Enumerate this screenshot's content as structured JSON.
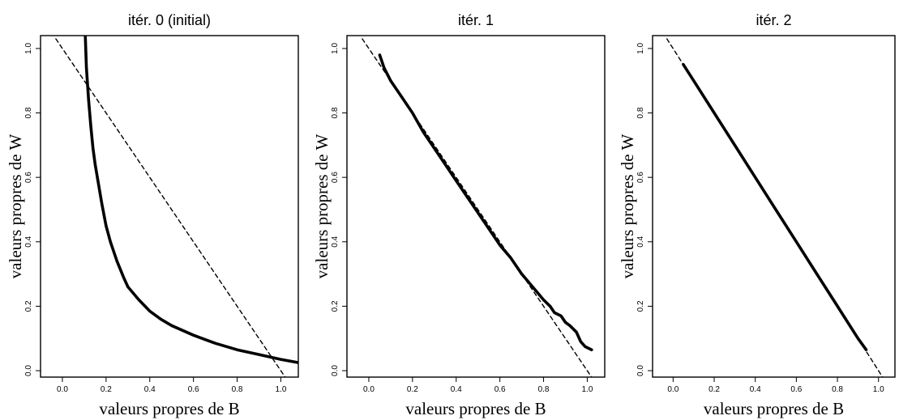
{
  "chart_data": [
    {
      "type": "line",
      "title": "itér. 0 (initial)",
      "xlabel": "valeurs propres de B",
      "ylabel": "valeurs propres de W",
      "xlim": [
        -0.1,
        1.08
      ],
      "ylim": [
        -0.02,
        1.04
      ],
      "xticks": [
        "0.0",
        "0.2",
        "0.4",
        "0.6",
        "0.8",
        "1.0"
      ],
      "yticks": [
        "0.0",
        "0.2",
        "0.4",
        "0.6",
        "0.8",
        "1.0"
      ],
      "grid": false,
      "series": [
        {
          "style": "solid",
          "x": [
            0.105,
            0.11,
            0.12,
            0.13,
            0.14,
            0.15,
            0.16,
            0.18,
            0.2,
            0.22,
            0.25,
            0.28,
            0.3,
            0.35,
            0.4,
            0.45,
            0.5,
            0.6,
            0.7,
            0.8,
            0.9,
            1.0,
            1.08
          ],
          "y": [
            1.04,
            0.94,
            0.84,
            0.76,
            0.69,
            0.64,
            0.6,
            0.52,
            0.45,
            0.4,
            0.34,
            0.29,
            0.26,
            0.22,
            0.185,
            0.16,
            0.14,
            0.11,
            0.085,
            0.065,
            0.05,
            0.035,
            0.025
          ]
        },
        {
          "style": "dashed",
          "x": [
            -0.03,
            1.03
          ],
          "y": [
            1.03,
            -0.03
          ]
        }
      ]
    },
    {
      "type": "line",
      "title": "itér. 1",
      "xlabel": "valeurs propres de B",
      "ylabel": "valeurs propres de W",
      "xlim": [
        -0.1,
        1.08
      ],
      "ylim": [
        -0.02,
        1.04
      ],
      "xticks": [
        "0.0",
        "0.2",
        "0.4",
        "0.6",
        "0.8",
        "1.0"
      ],
      "yticks": [
        "0.0",
        "0.2",
        "0.4",
        "0.6",
        "0.8",
        "1.0"
      ],
      "grid": false,
      "series": [
        {
          "style": "solid",
          "x": [
            0.05,
            0.07,
            0.1,
            0.15,
            0.2,
            0.25,
            0.3,
            0.35,
            0.4,
            0.45,
            0.5,
            0.55,
            0.6,
            0.65,
            0.7,
            0.75,
            0.8,
            0.83,
            0.85,
            0.88,
            0.9,
            0.92,
            0.95,
            0.97,
            0.99,
            1.02
          ],
          "y": [
            0.98,
            0.94,
            0.9,
            0.85,
            0.8,
            0.74,
            0.69,
            0.64,
            0.59,
            0.54,
            0.49,
            0.44,
            0.39,
            0.35,
            0.3,
            0.26,
            0.22,
            0.2,
            0.18,
            0.17,
            0.15,
            0.14,
            0.12,
            0.09,
            0.075,
            0.065
          ]
        },
        {
          "style": "dashed",
          "x": [
            -0.03,
            1.03
          ],
          "y": [
            1.03,
            -0.03
          ]
        }
      ]
    },
    {
      "type": "line",
      "title": "itér. 2",
      "xlabel": "valeurs propres de B",
      "ylabel": "valeurs propres de W",
      "xlim": [
        -0.1,
        1.08
      ],
      "ylim": [
        -0.02,
        1.04
      ],
      "xticks": [
        "0.0",
        "0.2",
        "0.4",
        "0.6",
        "0.8",
        "1.0"
      ],
      "yticks": [
        "0.0",
        "0.2",
        "0.4",
        "0.6",
        "0.8",
        "1.0"
      ],
      "grid": false,
      "series": [
        {
          "style": "solid",
          "x": [
            0.05,
            0.1,
            0.2,
            0.3,
            0.4,
            0.5,
            0.6,
            0.7,
            0.8,
            0.9,
            0.94
          ],
          "y": [
            0.95,
            0.9,
            0.8,
            0.7,
            0.6,
            0.5,
            0.4,
            0.3,
            0.2,
            0.1,
            0.065
          ]
        },
        {
          "style": "dashed",
          "x": [
            -0.03,
            1.03
          ],
          "y": [
            1.03,
            -0.03
          ]
        }
      ]
    }
  ]
}
